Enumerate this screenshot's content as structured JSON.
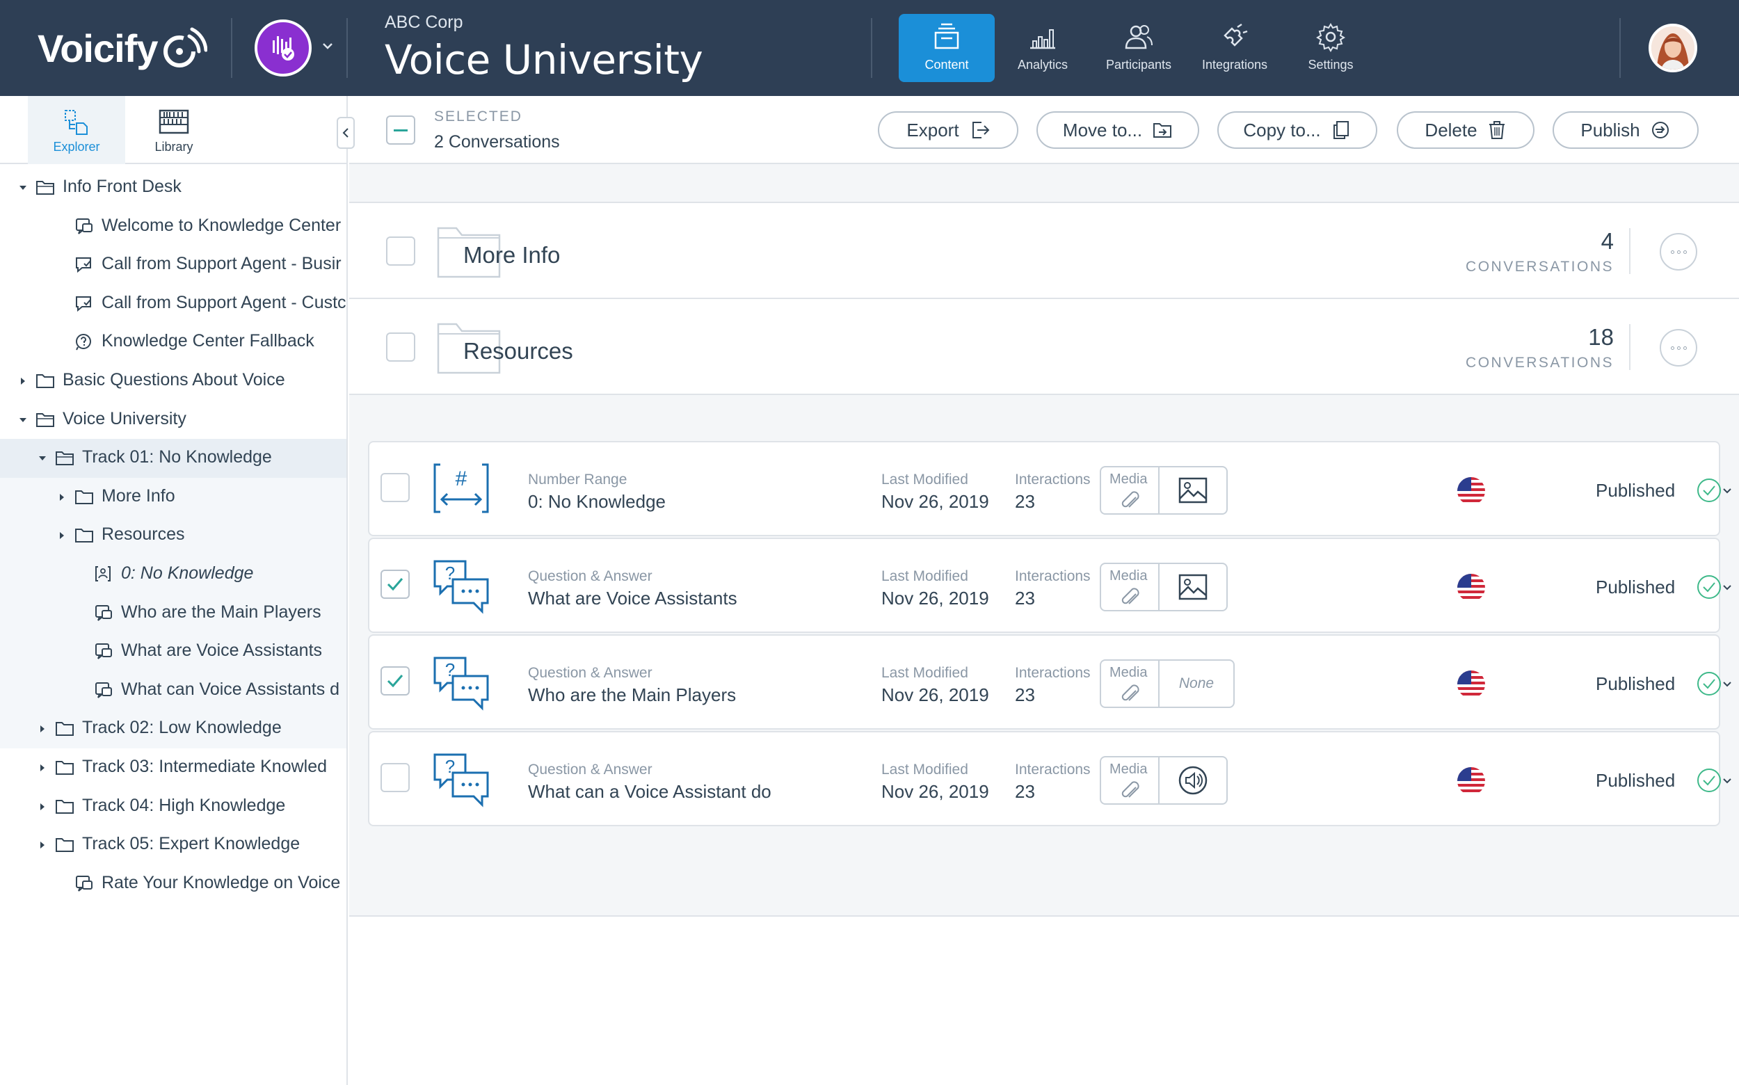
{
  "header": {
    "brand": "Voicify",
    "org_name": "ABC Corp",
    "app_title": "Voice University",
    "nav": [
      {
        "label": "Content",
        "icon": "content-icon",
        "active": true
      },
      {
        "label": "Analytics",
        "icon": "analytics-icon",
        "active": false
      },
      {
        "label": "Participants",
        "icon": "participants-icon",
        "active": false
      },
      {
        "label": "Integrations",
        "icon": "integrations-icon",
        "active": false
      },
      {
        "label": "Settings",
        "icon": "settings-icon",
        "active": false
      }
    ],
    "colors": {
      "bar": "#2e3f55",
      "active": "#1b8fd8",
      "app_badge": "#8a2fd0"
    }
  },
  "sidebar": {
    "tabs": [
      {
        "label": "Explorer",
        "icon": "explorer-icon",
        "active": true
      },
      {
        "label": "Library",
        "icon": "library-icon",
        "active": false
      }
    ],
    "tree": [
      {
        "label": "Info Front Desk",
        "type": "folder-open",
        "expanded": true
      },
      {
        "label": "Welcome to Knowledge Center",
        "type": "conversation"
      },
      {
        "label": "Call from Support Agent - Busir",
        "type": "chat"
      },
      {
        "label": "Call from Support Agent - Custc",
        "type": "chat"
      },
      {
        "label": "Knowledge Center Fallback",
        "type": "help"
      },
      {
        "label": "Basic Questions About Voice",
        "type": "folder",
        "expanded": false
      },
      {
        "label": "Voice University",
        "type": "folder-open",
        "expanded": true
      },
      {
        "label": "Track 01: No Knowledge",
        "type": "folder-open",
        "expanded": true,
        "selected": true
      },
      {
        "label": "More Info",
        "type": "folder",
        "expanded": false
      },
      {
        "label": "Resources",
        "type": "folder",
        "expanded": false
      },
      {
        "label": "0: No Knowledge",
        "type": "number-range"
      },
      {
        "label": "Who are the Main Players",
        "type": "conversation"
      },
      {
        "label": "What are Voice Assistants",
        "type": "conversation"
      },
      {
        "label": "What can Voice Assistants d",
        "type": "conversation"
      },
      {
        "label": "Track 02: Low Knowledge",
        "type": "folder",
        "expanded": false
      },
      {
        "label": "Track 03: Intermediate Knowled",
        "type": "folder",
        "expanded": false
      },
      {
        "label": "Track 04: High Knowledge",
        "type": "folder",
        "expanded": false
      },
      {
        "label": "Track 05: Expert Knowledge",
        "type": "folder",
        "expanded": false
      },
      {
        "label": "Rate Your Knowledge on Voice",
        "type": "conversation"
      }
    ]
  },
  "actionbar": {
    "selected_label": "SELECTED",
    "selected_count": "2 Conversations",
    "buttons": {
      "export": "Export",
      "move": "Move to...",
      "copy": "Copy to...",
      "delete": "Delete",
      "publish": "Publish"
    }
  },
  "folders": [
    {
      "name": "More Info",
      "count": "4",
      "count_label": "CONVERSATIONS"
    },
    {
      "name": "Resources",
      "count": "18",
      "count_label": "CONVERSATIONS"
    }
  ],
  "conversations": [
    {
      "type": "Number Range",
      "title": "0: No Knowledge",
      "modified_label": "Last Modified",
      "modified": "Nov 26, 2019",
      "interactions_label": "Interactions",
      "interactions": "23",
      "media_label": "Media",
      "media": "image",
      "status": "Published",
      "checked": false
    },
    {
      "type": "Question & Answer",
      "title": "What are Voice Assistants",
      "modified_label": "Last Modified",
      "modified": "Nov 26, 2019",
      "interactions_label": "Interactions",
      "interactions": "23",
      "media_label": "Media",
      "media": "image",
      "status": "Published",
      "checked": true
    },
    {
      "type": "Question & Answer",
      "title": "Who are the Main Players",
      "modified_label": "Last Modified",
      "modified": "Nov 26, 2019",
      "interactions_label": "Interactions",
      "interactions": "23",
      "media_label": "Media",
      "media": "None",
      "status": "Published",
      "checked": true
    },
    {
      "type": "Question & Answer",
      "title": "What can a Voice Assistant do",
      "modified_label": "Last Modified",
      "modified": "Nov 26, 2019",
      "interactions_label": "Interactions",
      "interactions": "23",
      "media_label": "Media",
      "media": "audio",
      "status": "Published",
      "checked": false
    }
  ],
  "accent_colors": {
    "check": "#2aa59a",
    "status_ok": "#3fb98a"
  }
}
